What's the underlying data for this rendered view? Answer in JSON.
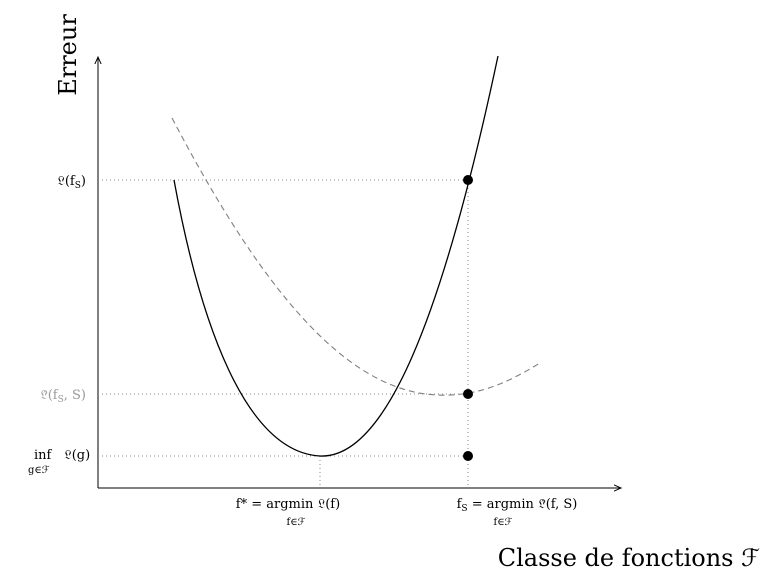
{
  "axes": {
    "y_label": "Erreur",
    "x_label": "Classe de fonctions ℱ"
  },
  "y_ticks": {
    "L_fS": "𝔏(f",
    "L_fS_sub": "S",
    "L_fS_close": ")",
    "Lhat_fS_S": "𝔏̂(f",
    "Lhat_sub": "S",
    "Lhat_tail": ", S)",
    "inf_word": "inf",
    "inf_expr": "𝔏(g)",
    "inf_sub": "g∈ℱ"
  },
  "x_ticks": {
    "fstar_main": "f* = argmin 𝔏(f)",
    "fstar_sub": "f∈ℱ",
    "fS_f": "f",
    "fS_sub": "S",
    "fS_rest": " = argmin 𝔏̂(f, S)",
    "fS_under": "f∈ℱ"
  },
  "colors": {
    "true_risk_curve": "#000000",
    "empirical_risk_curve": "#808080",
    "empirical_label": "#999999",
    "guide_lines": "#888888"
  }
}
